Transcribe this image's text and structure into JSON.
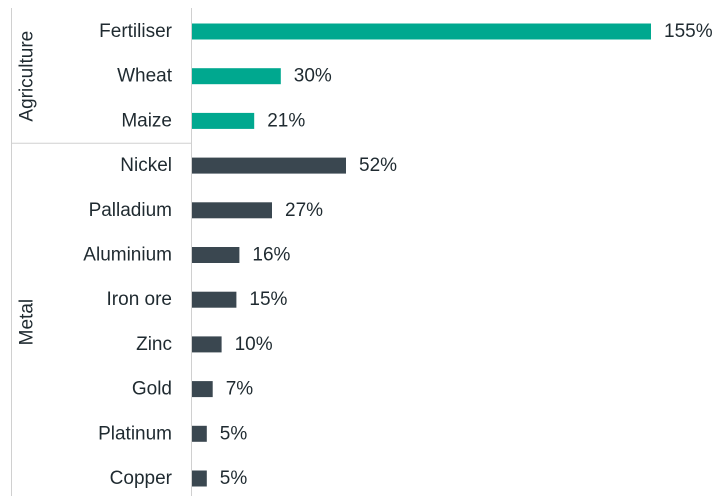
{
  "chart_data": {
    "type": "bar",
    "orientation": "horizontal",
    "colors": {
      "Agriculture": "#00a88f",
      "Metal": "#3a4750",
      "axis": "#d0d0d0",
      "text": "#1f2a30"
    },
    "groups": [
      {
        "name": "Agriculture",
        "categories": [
          "Fertiliser",
          "Wheat",
          "Maize"
        ],
        "values": [
          155,
          30,
          21
        ],
        "labels": [
          "155%",
          "30%",
          "21%"
        ]
      },
      {
        "name": "Metal",
        "categories": [
          "Nickel",
          "Palladium",
          "Aluminium",
          "Iron ore",
          "Zinc",
          "Gold",
          "Platinum",
          "Copper"
        ],
        "values": [
          52,
          27,
          16,
          15,
          10,
          7,
          5,
          5
        ],
        "labels": [
          "52%",
          "27%",
          "16%",
          "15%",
          "10%",
          "7%",
          "5%",
          "5%"
        ]
      }
    ],
    "xlim": [
      0,
      155
    ],
    "grid": false,
    "legend": "none"
  }
}
